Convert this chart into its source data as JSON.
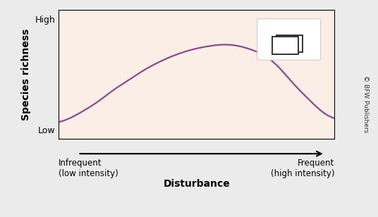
{
  "ylabel": "Species richness",
  "xlabel": "Disturbance",
  "ytick_labels": [
    "Low",
    "High"
  ],
  "xtick_left": "Infrequent\n(low intensity)",
  "xtick_right": "Frequent\n(high intensity)",
  "plot_bg_color": "#faeee6",
  "line_color": "#8b4a8b",
  "line_width": 1.6,
  "fig_bg_color": "#ebebeb",
  "copyright_text": "© BFW Publishers",
  "curve_x": [
    0.0,
    0.05,
    0.1,
    0.15,
    0.2,
    0.25,
    0.3,
    0.35,
    0.4,
    0.45,
    0.5,
    0.55,
    0.6,
    0.65,
    0.7,
    0.75,
    0.8,
    0.85,
    0.9,
    0.95,
    1.0
  ],
  "curve_y": [
    0.13,
    0.17,
    0.23,
    0.3,
    0.38,
    0.45,
    0.52,
    0.58,
    0.63,
    0.67,
    0.7,
    0.72,
    0.73,
    0.72,
    0.69,
    0.64,
    0.55,
    0.43,
    0.32,
    0.22,
    0.16
  ]
}
